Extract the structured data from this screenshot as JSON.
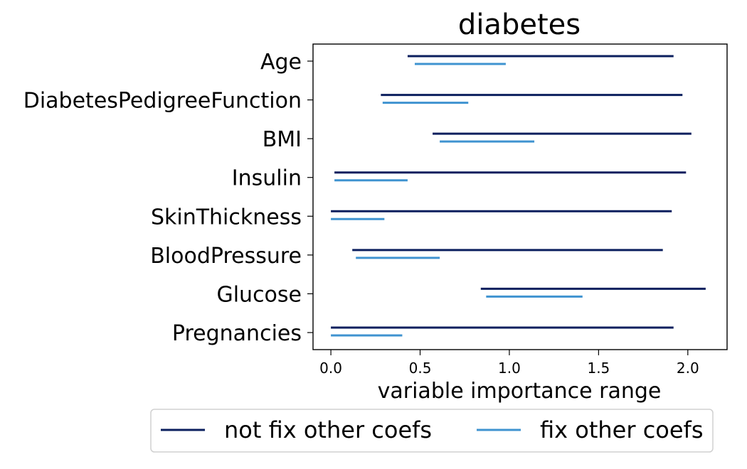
{
  "chart_data": {
    "type": "range",
    "title": "diabetes",
    "xlabel": "variable importance range",
    "ylabel": "",
    "xlim": [
      -0.1,
      2.22
    ],
    "xticks": [
      0.0,
      0.5,
      1.0,
      1.5,
      2.0
    ],
    "xtick_labels": [
      "0.0",
      "0.5",
      "1.0",
      "1.5",
      "2.0"
    ],
    "categories": [
      "Pregnancies",
      "Glucose",
      "BloodPressure",
      "SkinThickness",
      "Insulin",
      "BMI",
      "DiabetesPedigreeFunction",
      "Age"
    ],
    "grid": false,
    "legend_position": "bottom",
    "series": [
      {
        "name": "not fix other coefs",
        "color": "#0b1f5e",
        "ranges": [
          [
            0.0,
            1.92
          ],
          [
            0.84,
            2.1
          ],
          [
            0.12,
            1.86
          ],
          [
            0.0,
            1.91
          ],
          [
            0.02,
            1.99
          ],
          [
            0.57,
            2.02
          ],
          [
            0.28,
            1.97
          ],
          [
            0.43,
            1.92
          ]
        ]
      },
      {
        "name": "fix other coefs",
        "color": "#3f93d0",
        "ranges": [
          [
            0.0,
            0.4
          ],
          [
            0.87,
            1.41
          ],
          [
            0.14,
            0.61
          ],
          [
            0.0,
            0.3
          ],
          [
            0.02,
            0.43
          ],
          [
            0.61,
            1.14
          ],
          [
            0.29,
            0.77
          ],
          [
            0.47,
            0.98
          ]
        ]
      }
    ]
  }
}
